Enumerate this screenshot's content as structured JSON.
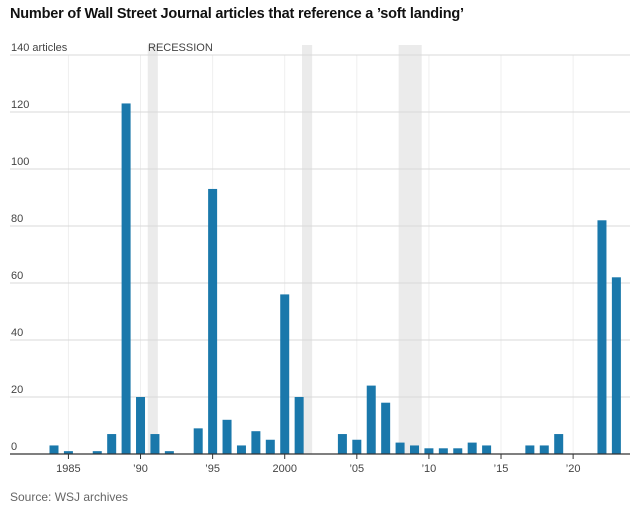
{
  "title": "Number of Wall Street Journal articles that reference a ’soft landing’",
  "source": "Source: WSJ archives",
  "colors": {
    "bar": "#1a78ab",
    "recession": "#ebebeb",
    "grid": "#d9d9d9",
    "axis": "#333333"
  },
  "chart_data": {
    "type": "bar",
    "title": "Number of Wall Street Journal articles that reference a ’soft landing’",
    "xlabel": "",
    "ylabel": "articles",
    "ylim": [
      0,
      140
    ],
    "y_ticks": [
      0,
      20,
      40,
      60,
      80,
      100,
      120,
      140
    ],
    "y_tick_labels": [
      "0",
      "20",
      "40",
      "60",
      "80",
      "100",
      "120",
      "140 articles"
    ],
    "x_ticks": [
      1985,
      1990,
      1995,
      2000,
      2005,
      2010,
      2015,
      2020
    ],
    "x_tick_labels": [
      "1985",
      "’90",
      "’95",
      "2000",
      "’05",
      "’10",
      "’15",
      "’20"
    ],
    "recession_label": "RECESSION",
    "recessions": [
      [
        1990.5,
        1991.2
      ],
      [
        2001.2,
        2001.9
      ],
      [
        2007.9,
        2009.5
      ]
    ],
    "categories": [
      1984,
      1985,
      1986,
      1987,
      1988,
      1989,
      1990,
      1991,
      1992,
      1993,
      1994,
      1995,
      1996,
      1997,
      1998,
      1999,
      2000,
      2001,
      2002,
      2003,
      2004,
      2005,
      2006,
      2007,
      2008,
      2009,
      2010,
      2011,
      2012,
      2013,
      2014,
      2015,
      2016,
      2017,
      2018,
      2019,
      2020,
      2021,
      2022,
      2023
    ],
    "values": [
      3,
      1,
      0,
      1,
      7,
      123,
      20,
      7,
      1,
      0,
      9,
      93,
      12,
      3,
      8,
      5,
      56,
      20,
      0,
      0,
      7,
      5,
      24,
      18,
      4,
      3,
      2,
      2,
      2,
      4,
      3,
      0,
      0,
      3,
      3,
      7,
      0,
      0,
      82,
      62
    ]
  }
}
